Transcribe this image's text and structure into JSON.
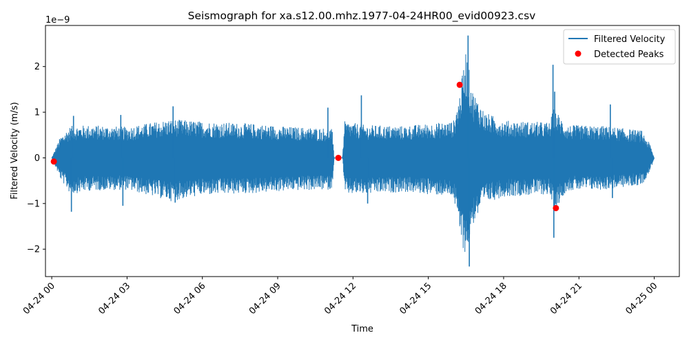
{
  "chart_data": {
    "type": "line",
    "title": "Seismograph for xa.s12.00.mhz.1977-04-24HR00_evid00923.csv",
    "xlabel": "Time",
    "ylabel": "Filtered Velocity (m/s)",
    "y_offset_label": "1e−9",
    "x_range": [
      "1977-04-23 23:45",
      "1977-04-25 01:00"
    ],
    "ylim": [
      -2.6,
      2.9
    ],
    "y_scale_factor": 1e-09,
    "x_ticks": [
      {
        "time": "1977-04-24 00:00",
        "label": "04-24 00"
      },
      {
        "time": "1977-04-24 03:00",
        "label": "04-24 03"
      },
      {
        "time": "1977-04-24 06:00",
        "label": "04-24 06"
      },
      {
        "time": "1977-04-24 09:00",
        "label": "04-24 09"
      },
      {
        "time": "1977-04-24 12:00",
        "label": "04-24 12"
      },
      {
        "time": "1977-04-24 15:00",
        "label": "04-24 15"
      },
      {
        "time": "1977-04-24 18:00",
        "label": "04-24 18"
      },
      {
        "time": "1977-04-24 21:00",
        "label": "04-24 21"
      },
      {
        "time": "1977-04-25 00:00",
        "label": "04-25 00"
      }
    ],
    "y_ticks": [
      {
        "value": -2,
        "label": "−2"
      },
      {
        "value": -1,
        "label": "−1"
      },
      {
        "value": 0,
        "label": "0"
      },
      {
        "value": 1,
        "label": "1"
      },
      {
        "value": 2,
        "label": "2"
      }
    ],
    "legend": {
      "position": "top-right"
    },
    "series": [
      {
        "name": "Filtered Velocity",
        "kind": "line",
        "color": "#1f77b4",
        "envelope": [
          {
            "time": "1977-04-24 00:00",
            "min": 0.0,
            "max": 0.0
          },
          {
            "time": "1977-04-24 00:20",
            "min": -0.45,
            "max": 0.45
          },
          {
            "time": "1977-04-24 00:45",
            "min": -0.8,
            "max": 0.7
          },
          {
            "time": "1977-04-24 01:30",
            "min": -0.72,
            "max": 0.72
          },
          {
            "time": "1977-04-24 03:00",
            "min": -0.7,
            "max": 0.68
          },
          {
            "time": "1977-04-24 04:45",
            "min": -0.95,
            "max": 0.85
          },
          {
            "time": "1977-04-24 06:00",
            "min": -0.82,
            "max": 0.8
          },
          {
            "time": "1977-04-24 08:00",
            "min": -0.78,
            "max": 0.75
          },
          {
            "time": "1977-04-24 09:30",
            "min": -0.72,
            "max": 0.68
          },
          {
            "time": "1977-04-24 11:10",
            "min": -0.7,
            "max": 0.65
          },
          {
            "time": "1977-04-24 11:15",
            "min": 0.0,
            "max": 0.0
          },
          {
            "time": "1977-04-24 11:35",
            "min": 0.0,
            "max": 0.0
          },
          {
            "time": "1977-04-24 11:40",
            "min": -0.8,
            "max": 0.8
          },
          {
            "time": "1977-04-24 12:30",
            "min": -0.8,
            "max": 0.72
          },
          {
            "time": "1977-04-24 14:00",
            "min": -0.75,
            "max": 0.7
          },
          {
            "time": "1977-04-24 16:00",
            "min": -0.85,
            "max": 0.8
          },
          {
            "time": "1977-04-24 16:15",
            "min": -1.7,
            "max": 1.4
          },
          {
            "time": "1977-04-24 16:30",
            "min": -2.2,
            "max": 2.4
          },
          {
            "time": "1977-04-24 16:45",
            "min": -1.5,
            "max": 1.5
          },
          {
            "time": "1977-04-24 17:15",
            "min": -1.0,
            "max": 1.0
          },
          {
            "time": "1977-04-24 18:00",
            "min": -0.85,
            "max": 0.82
          },
          {
            "time": "1977-04-24 19:50",
            "min": -0.8,
            "max": 0.78
          },
          {
            "time": "1977-04-24 20:00",
            "min": -1.2,
            "max": 1.1
          },
          {
            "time": "1977-04-24 20:30",
            "min": -0.72,
            "max": 0.72
          },
          {
            "time": "1977-04-24 22:00",
            "min": -0.7,
            "max": 0.7
          },
          {
            "time": "1977-04-24 23:30",
            "min": -0.6,
            "max": 0.6
          },
          {
            "time": "1977-04-24 23:50",
            "min": -0.3,
            "max": 0.3
          },
          {
            "time": "1977-04-25 00:00",
            "min": 0.0,
            "max": 0.0
          }
        ],
        "spikes": [
          {
            "time": "1977-04-24 00:47",
            "value": -1.18
          },
          {
            "time": "1977-04-24 00:52",
            "value": 0.92
          },
          {
            "time": "1977-04-24 02:45",
            "value": 0.94
          },
          {
            "time": "1977-04-24 02:50",
            "value": -1.05
          },
          {
            "time": "1977-04-24 04:50",
            "value": 1.13
          },
          {
            "time": "1977-04-24 04:55",
            "value": -0.98
          },
          {
            "time": "1977-04-24 11:00",
            "value": 1.1
          },
          {
            "time": "1977-04-24 12:20",
            "value": 1.37
          },
          {
            "time": "1977-04-24 12:35",
            "value": -1.0
          },
          {
            "time": "1977-04-24 16:35",
            "value": 2.68
          },
          {
            "time": "1977-04-24 16:38",
            "value": -2.38
          },
          {
            "time": "1977-04-24 19:58",
            "value": 2.04
          },
          {
            "time": "1977-04-24 20:00",
            "value": -1.75
          },
          {
            "time": "1977-04-24 20:02",
            "value": 1.45
          },
          {
            "time": "1977-04-24 22:15",
            "value": 1.17
          },
          {
            "time": "1977-04-24 22:20",
            "value": -0.88
          }
        ]
      },
      {
        "name": "Detected Peaks",
        "kind": "scatter",
        "color": "#ff0000",
        "points": [
          {
            "time": "1977-04-24 00:05",
            "value": -0.08
          },
          {
            "time": "1977-04-24 11:25",
            "value": 0.0
          },
          {
            "time": "1977-04-24 16:15",
            "value": 1.6
          },
          {
            "time": "1977-04-24 20:05",
            "value": -1.1
          }
        ]
      }
    ]
  }
}
